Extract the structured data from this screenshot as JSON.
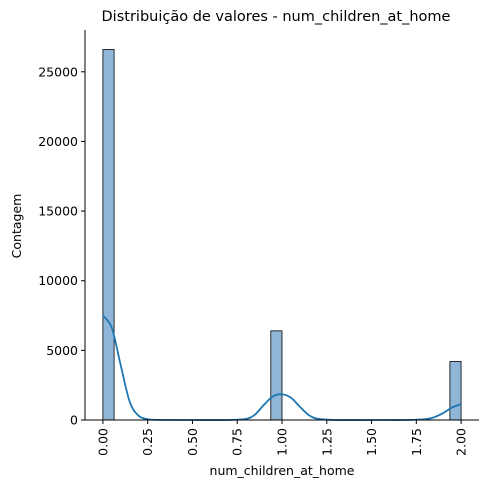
{
  "chart_data": {
    "type": "bar",
    "subtype": "histogram-with-kde",
    "title": "Distribuição de valores - num_children_at_home",
    "xlabel": "num_children_at_home",
    "ylabel": "Contagem",
    "xlim": [
      -0.1,
      2.1
    ],
    "ylim": [
      0,
      28000
    ],
    "xticks": [
      0.0,
      0.25,
      0.5,
      0.75,
      1.0,
      1.25,
      1.5,
      1.75,
      2.0
    ],
    "xtick_labels": [
      "0.00",
      "0.25",
      "0.50",
      "0.75",
      "1.00",
      "1.25",
      "1.50",
      "1.75",
      "2.00"
    ],
    "yticks": [
      0,
      5000,
      10000,
      15000,
      20000,
      25000
    ],
    "ytick_labels": [
      "0",
      "5000",
      "10000",
      "15000",
      "20000",
      "25000"
    ],
    "bin_width": 0.0625,
    "bins": [
      {
        "x0": 0.0,
        "x1": 0.0625,
        "count": 26600
      },
      {
        "x0": 0.9375,
        "x1": 1.0,
        "count": 6400
      },
      {
        "x0": 1.9375,
        "x1": 2.0,
        "count": 4200
      }
    ],
    "kde": {
      "x": [
        0.0,
        0.05,
        0.1,
        0.15,
        0.2,
        0.25,
        0.3,
        0.5,
        0.7,
        0.8,
        0.85,
        0.9,
        0.95,
        1.0,
        1.05,
        1.1,
        1.15,
        1.2,
        1.3,
        1.5,
        1.7,
        1.8,
        1.85,
        1.9,
        1.95,
        2.0
      ],
      "y": [
        7500,
        6600,
        3900,
        1300,
        300,
        60,
        10,
        0,
        0,
        80,
        400,
        1100,
        1700,
        1850,
        1600,
        950,
        350,
        90,
        0,
        0,
        0,
        60,
        200,
        500,
        900,
        1150
      ]
    },
    "colors": {
      "bar_fill": "#8fb6d6",
      "bar_edge": "#000000",
      "kde_line": "#1f77b4"
    },
    "grid": false,
    "legend": "none"
  }
}
